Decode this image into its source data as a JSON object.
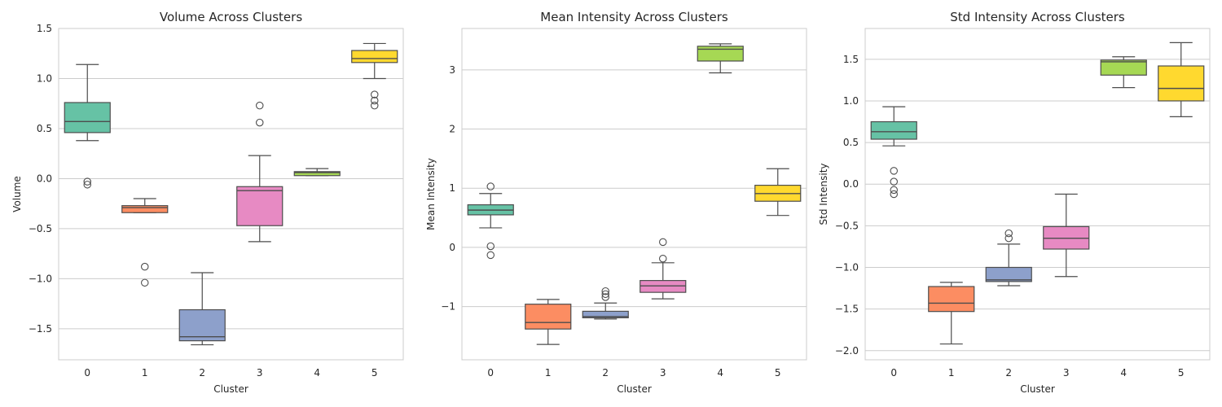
{
  "palette": [
    "#66c2a5",
    "#fc8d62",
    "#8da0cb",
    "#e78ac3",
    "#a6d854",
    "#ffd92f"
  ],
  "chart_data": [
    {
      "type": "box",
      "title": "Volume Across Clusters",
      "xlabel": "Cluster",
      "ylabel": "Volume",
      "categories": [
        "0",
        "1",
        "2",
        "3",
        "4",
        "5"
      ],
      "ylim": [
        -1.81,
        1.5
      ],
      "yticks": [
        -1.5,
        -1.0,
        -0.5,
        0.0,
        0.5,
        1.0,
        1.5
      ],
      "ytick_labels": [
        "−1.5",
        "−1.0",
        "−0.5",
        "0.0",
        "0.5",
        "1.0",
        "1.5"
      ],
      "grid": "horizontal",
      "boxes": [
        {
          "category": "0",
          "q1": 0.46,
          "median": 0.57,
          "q3": 0.76,
          "whisker_low": 0.38,
          "whisker_high": 1.14,
          "outliers": [
            -0.03,
            -0.06
          ]
        },
        {
          "category": "1",
          "q1": -0.34,
          "median": -0.29,
          "q3": -0.27,
          "whisker_low": -0.34,
          "whisker_high": -0.2,
          "outliers": [
            -0.88,
            -1.04
          ]
        },
        {
          "category": "2",
          "q1": -1.62,
          "median": -1.58,
          "q3": -1.31,
          "whisker_low": -1.66,
          "whisker_high": -0.94,
          "outliers": []
        },
        {
          "category": "3",
          "q1": -0.47,
          "median": -0.12,
          "q3": -0.08,
          "whisker_low": -0.63,
          "whisker_high": 0.23,
          "outliers": [
            0.73,
            0.56
          ]
        },
        {
          "category": "4",
          "q1": 0.03,
          "median": 0.06,
          "q3": 0.07,
          "whisker_low": 0.03,
          "whisker_high": 0.1,
          "outliers": []
        },
        {
          "category": "5",
          "q1": 1.16,
          "median": 1.2,
          "q3": 1.28,
          "whisker_low": 1.0,
          "whisker_high": 1.35,
          "outliers": [
            0.84,
            0.78,
            0.73
          ]
        }
      ]
    },
    {
      "type": "box",
      "title": "Mean Intensity Across Clusters",
      "xlabel": "Cluster",
      "ylabel": "Mean Intensity",
      "categories": [
        "0",
        "1",
        "2",
        "3",
        "4",
        "5"
      ],
      "ylim": [
        -1.9,
        3.7
      ],
      "yticks": [
        -1,
        0,
        1,
        2,
        3
      ],
      "ytick_labels": [
        "−1",
        "0",
        "1",
        "2",
        "3"
      ],
      "grid": "horizontal",
      "boxes": [
        {
          "category": "0",
          "q1": 0.55,
          "median": 0.63,
          "q3": 0.72,
          "whisker_low": 0.33,
          "whisker_high": 0.91,
          "outliers": [
            1.03,
            0.02,
            -0.13
          ]
        },
        {
          "category": "1",
          "q1": -1.38,
          "median": -1.27,
          "q3": -0.96,
          "whisker_low": -1.64,
          "whisker_high": -0.88,
          "outliers": []
        },
        {
          "category": "2",
          "q1": -1.19,
          "median": -1.17,
          "q3": -1.08,
          "whisker_low": -1.21,
          "whisker_high": -0.94,
          "outliers": [
            -0.74,
            -0.79,
            -0.84
          ]
        },
        {
          "category": "3",
          "q1": -0.76,
          "median": -0.65,
          "q3": -0.56,
          "whisker_low": -0.87,
          "whisker_high": -0.26,
          "outliers": [
            0.09,
            -0.19
          ]
        },
        {
          "category": "4",
          "q1": 3.15,
          "median": 3.35,
          "q3": 3.4,
          "whisker_low": 2.95,
          "whisker_high": 3.44,
          "outliers": []
        },
        {
          "category": "5",
          "q1": 0.78,
          "median": 0.91,
          "q3": 1.05,
          "whisker_low": 0.54,
          "whisker_high": 1.33,
          "outliers": []
        }
      ]
    },
    {
      "type": "box",
      "title": "Std Intensity Across Clusters",
      "xlabel": "Cluster",
      "ylabel": "Std Intensity",
      "categories": [
        "0",
        "1",
        "2",
        "3",
        "4",
        "5"
      ],
      "ylim": [
        -2.11,
        1.87
      ],
      "yticks": [
        -2.0,
        -1.5,
        -1.0,
        -0.5,
        0.0,
        0.5,
        1.0,
        1.5
      ],
      "ytick_labels": [
        "−2.0",
        "−1.5",
        "−1.0",
        "−0.5",
        "0.0",
        "0.5",
        "1.0",
        "1.5"
      ],
      "grid": "horizontal",
      "boxes": [
        {
          "category": "0",
          "q1": 0.54,
          "median": 0.63,
          "q3": 0.75,
          "whisker_low": 0.46,
          "whisker_high": 0.93,
          "outliers": [
            0.16,
            0.03,
            -0.07,
            -0.12
          ]
        },
        {
          "category": "1",
          "q1": -1.53,
          "median": -1.43,
          "q3": -1.23,
          "whisker_low": -1.92,
          "whisker_high": -1.18,
          "outliers": []
        },
        {
          "category": "2",
          "q1": -1.17,
          "median": -1.15,
          "q3": -1.0,
          "whisker_low": -1.22,
          "whisker_high": -0.72,
          "outliers": [
            -0.59,
            -0.65
          ]
        },
        {
          "category": "3",
          "q1": -0.78,
          "median": -0.65,
          "q3": -0.51,
          "whisker_low": -1.11,
          "whisker_high": -0.12,
          "outliers": []
        },
        {
          "category": "4",
          "q1": 1.31,
          "median": 1.47,
          "q3": 1.49,
          "whisker_low": 1.16,
          "whisker_high": 1.53,
          "outliers": []
        },
        {
          "category": "5",
          "q1": 1.0,
          "median": 1.15,
          "q3": 1.42,
          "whisker_low": 0.81,
          "whisker_high": 1.7,
          "outliers": []
        }
      ]
    }
  ]
}
